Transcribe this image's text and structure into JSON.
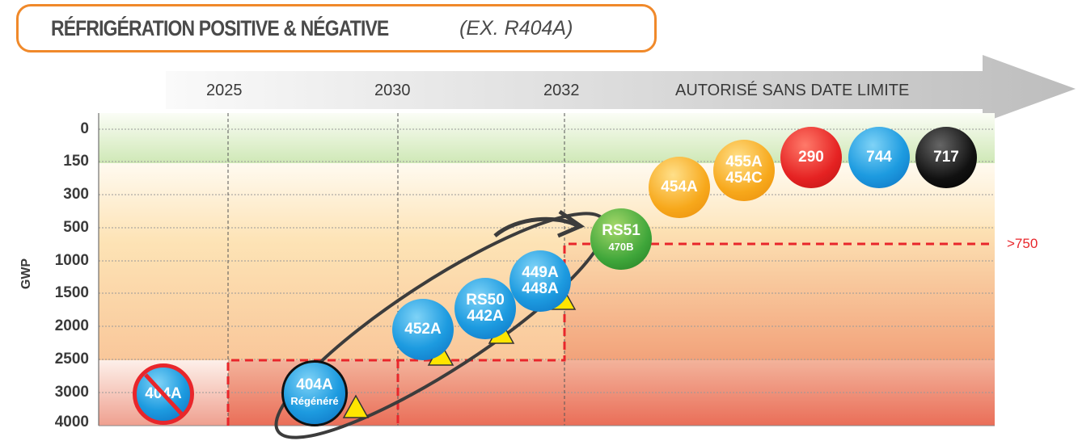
{
  "title": {
    "main": "RÉFRIGÉRATION POSITIVE & NÉGATIVE",
    "sub": "(EX. R404A)"
  },
  "timeline": {
    "years": [
      "2025",
      "2030",
      "2032"
    ],
    "unlimited": "AUTORISÉ SANS DATE LIMITE"
  },
  "y_axis": {
    "label": "GWP",
    "ticks": [
      "0",
      "150",
      "300",
      "500",
      "1000",
      "1500",
      "2000",
      "2500",
      "3000",
      "4000"
    ]
  },
  "threshold_label": ">750",
  "refrigerants": {
    "banned": "404A",
    "regen": {
      "line1": "404A",
      "line2": "Régénéré"
    },
    "r452a": "452A",
    "rs50": {
      "line1": "RS50",
      "line2": "442A"
    },
    "r449a": {
      "line1": "449A",
      "line2": "448A"
    },
    "rs51": {
      "line1": "RS51",
      "line2": "470B"
    },
    "r454a": "454A",
    "r455a": {
      "line1": "455A",
      "line2": "454C"
    },
    "r290": "290",
    "r744": "744",
    "r717": "717"
  },
  "colors": {
    "accent": "#f0892a",
    "threshold": "#e8262b",
    "green": "#3fa63a",
    "blue": "#1d9be0"
  }
}
